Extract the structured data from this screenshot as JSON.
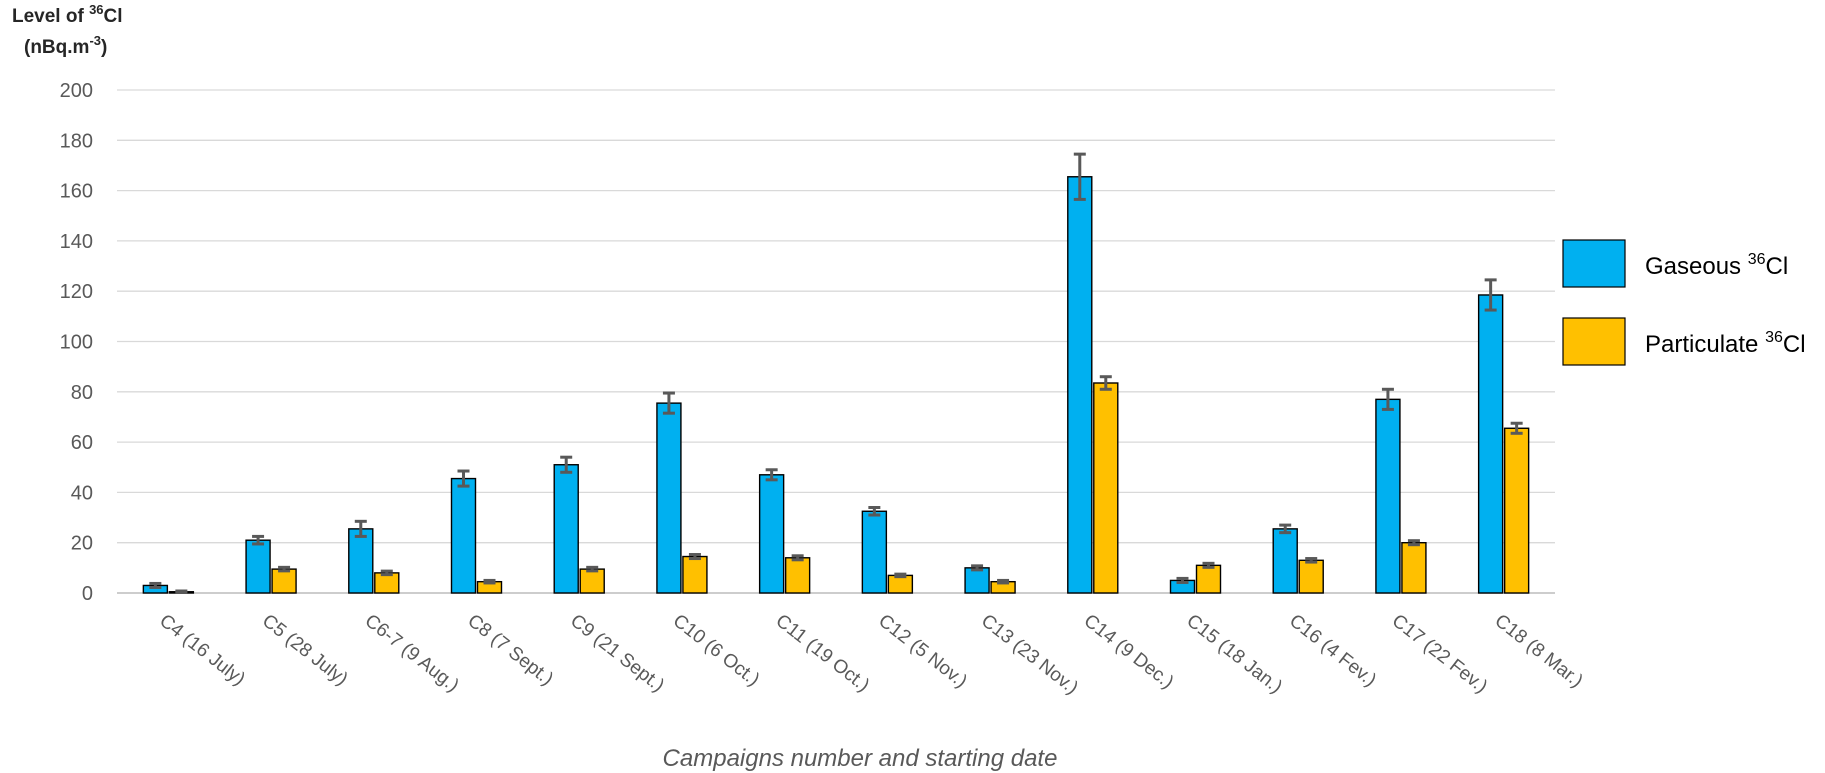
{
  "chart_data": {
    "type": "bar",
    "ylabel": {
      "line1_prefix": "Level of ",
      "line1_sup": "36",
      "line1_suffix": "Cl",
      "line2_prefix": "(nBq.m",
      "line2_sup": "-3",
      "line2_suffix": ")"
    },
    "xlabel": "Campaigns number and starting date",
    "ylim": [
      0,
      200
    ],
    "yticks": [
      "0",
      "20",
      "40",
      "60",
      "80",
      "100",
      "120",
      "140",
      "160",
      "180",
      "200"
    ],
    "grid": true,
    "legend_position": "right",
    "categories": [
      "C4 (16 July)",
      "C5 (28 July)",
      "C6-7 (9 Aug.)",
      "C8 (7 Sept.)",
      "C9 (21 Sept.)",
      "C10 (6 Oct.)",
      "C11 (19 Oct.)",
      "C12 (5 Nov.)",
      "C13 (23 Nov.)",
      "C14 (9 Dec.)",
      "C15 (18 Jan.)",
      "C16 (4 Fev.)",
      "C17 (22 Fev.)",
      "C18 (8 Mar.)"
    ],
    "series": [
      {
        "name_prefix": "Gaseous ",
        "name_sup": "36",
        "name_suffix": "Cl",
        "color": "#00B0F0",
        "values": [
          3,
          21,
          25.5,
          45.5,
          51,
          75.5,
          47,
          32.5,
          10,
          165.5,
          5,
          25.5,
          77,
          118.5
        ],
        "errors": [
          0.8,
          1.5,
          3,
          3,
          3,
          4,
          2,
          1.5,
          0.8,
          9,
          0.8,
          1.5,
          4,
          6
        ]
      },
      {
        "name_prefix": "Particulate ",
        "name_sup": "36",
        "name_suffix": "Cl",
        "color": "#FFC000",
        "values": [
          0.5,
          9.5,
          8,
          4.5,
          9.5,
          14.5,
          14,
          7,
          4.5,
          83.5,
          11,
          13,
          20,
          65.5
        ],
        "errors": [
          0.3,
          0.7,
          0.7,
          0.5,
          0.7,
          0.8,
          0.8,
          0.5,
          0.5,
          2.5,
          0.8,
          0.7,
          0.8,
          2
        ]
      }
    ],
    "error_bar_color": "#595959",
    "grid_color": "#d9d9d9"
  }
}
